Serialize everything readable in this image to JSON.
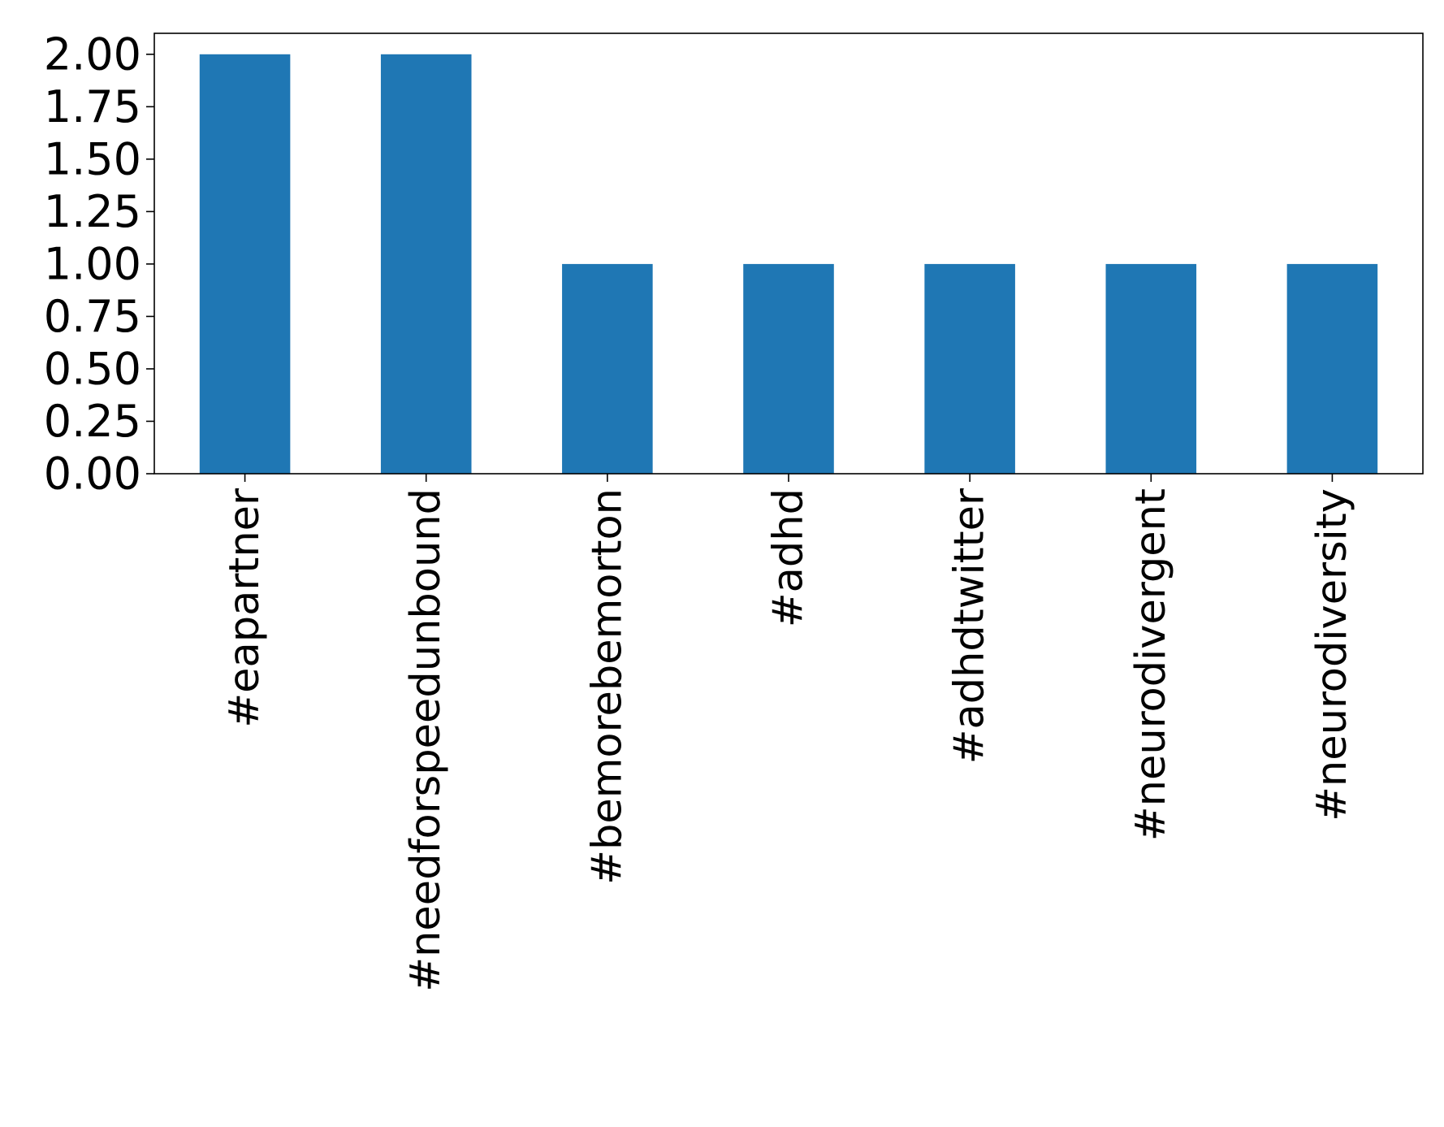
{
  "chart_data": {
    "type": "bar",
    "title": "",
    "xlabel": "",
    "ylabel": "",
    "categories": [
      "#eapartner",
      "#needforspeedunbound",
      "#bemorebemorton",
      "#adhd",
      "#adhdtwitter",
      "#neurodivergent",
      "#neurodiversity"
    ],
    "values": [
      2,
      2,
      1,
      1,
      1,
      1,
      1
    ],
    "ylim": [
      0,
      2.1
    ],
    "yticks": [
      "0.00",
      "0.25",
      "0.50",
      "0.75",
      "1.00",
      "1.25",
      "1.50",
      "1.75",
      "2.00"
    ],
    "grid": false,
    "legend": "none",
    "bar_color": "#1f77b4",
    "axis_color": "#000000"
  }
}
